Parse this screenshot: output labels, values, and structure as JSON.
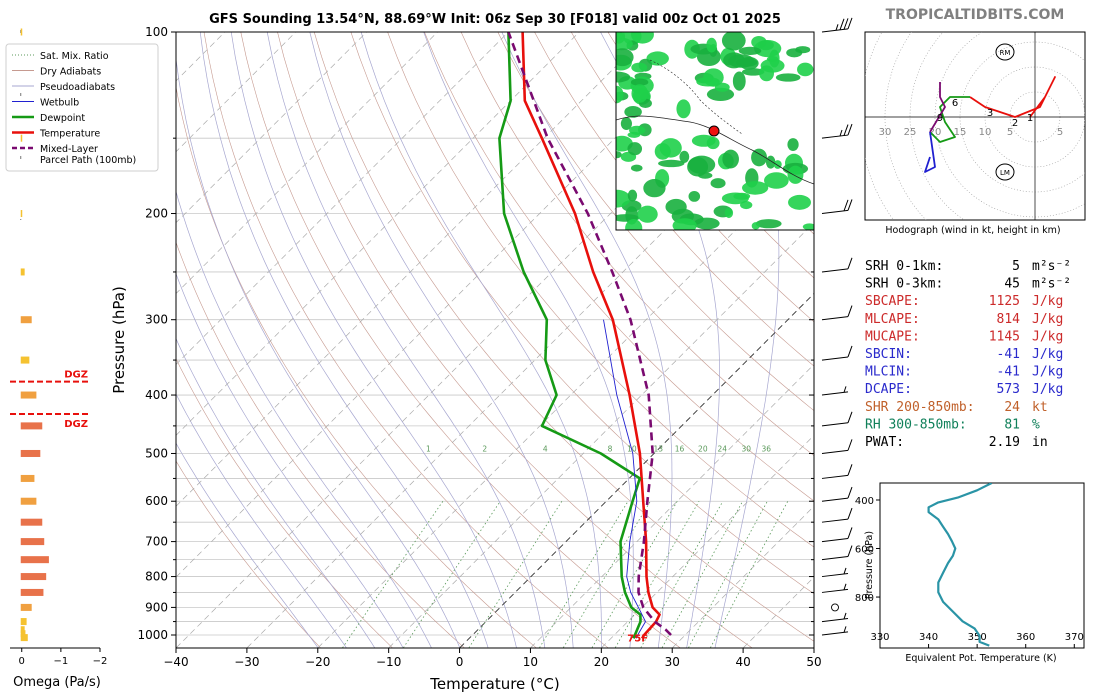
{
  "header": {
    "title": "GFS Sounding 13.54°N, 88.69°W Init: 06z Sep 30 [F018] valid 00z Oct 01 2025",
    "brand": "TROPICALTIDBITS.COM"
  },
  "colors": {
    "temperature": "#e8100c",
    "dewpoint": "#159a15",
    "wetbulb": "#2020d0",
    "parcel": "#7a0a70",
    "dry_adiabat": "#c69a90",
    "moist_adiabat": "#a7a7d0",
    "mixing_ratio": "#5b9a5b",
    "isobar": "#c8c8c8",
    "omega_low": "#f5c230",
    "omega_high": "#e8724a",
    "dgz": "#e8100c",
    "theta_e": "#2a94a6",
    "cape_red": "#cc2a2a",
    "cin_blue": "#2a2acc",
    "shr_orange": "#c0602a",
    "rh_green": "#10805a"
  },
  "chart_data": [
    {
      "type": "line",
      "name": "skew-t",
      "title": "GFS Sounding 13.54°N, 88.69°W Init: 06z Sep 30 [F018] valid 00z Oct 01 2025",
      "xlabel": "Temperature (°C)",
      "ylabel": "Pressure (hPa)",
      "xlim": [
        -40,
        50
      ],
      "ylim": [
        1050,
        100
      ],
      "x_ticks": [
        -40,
        -30,
        -20,
        -10,
        0,
        10,
        20,
        30,
        40,
        50
      ],
      "y_ticks": [
        100,
        200,
        300,
        400,
        500,
        600,
        700,
        800,
        900,
        1000
      ],
      "y_minor": [
        150,
        250,
        350,
        450,
        550,
        650,
        750,
        850,
        950
      ],
      "mixing_ratio_labels": [
        "1",
        "2",
        "4",
        "8",
        "10",
        "13",
        "16",
        "20",
        "24",
        "30",
        "36"
      ],
      "surface_temp_label": "75F",
      "legend": [
        {
          "label": "Sat. Mix. Ratio",
          "key": "mixing_ratio",
          "style": "dot"
        },
        {
          "label": "Dry Adiabats",
          "key": "dry_adiabat",
          "style": "thin"
        },
        {
          "label": "Pseudoadiabats",
          "key": "moist_adiabat",
          "style": "thin"
        },
        {
          "label": "Wetbulb",
          "key": "wetbulb",
          "style": "thin"
        },
        {
          "label": "Dewpoint",
          "key": "dewpoint",
          "style": "thick"
        },
        {
          "label": "Temperature",
          "key": "temperature",
          "style": "thick"
        },
        {
          "label": "Mixed-Layer",
          "label2": "Parcel Path (100mb)",
          "key": "parcel",
          "style": "dash"
        }
      ],
      "series": [
        {
          "name": "Temperature",
          "key": "temperature",
          "points": [
            [
              1013,
              24.4
            ],
            [
              1000,
              24.2
            ],
            [
              950,
              24.0
            ],
            [
              925,
              23.5
            ],
            [
              900,
              21.5
            ],
            [
              850,
              18.8
            ],
            [
              800,
              16.3
            ],
            [
              700,
              11.3
            ],
            [
              600,
              5.2
            ],
            [
              500,
              -2.0
            ],
            [
              400,
              -11.7
            ],
            [
              300,
              -24.7
            ],
            [
              250,
              -34.2
            ],
            [
              200,
              -45.0
            ],
            [
              150,
              -60.3
            ],
            [
              130,
              -68
            ],
            [
              100,
              -78
            ]
          ]
        },
        {
          "name": "Dewpoint",
          "key": "dewpoint",
          "points": [
            [
              1013,
              23.2
            ],
            [
              1000,
              22.9
            ],
            [
              950,
              21.8
            ],
            [
              925,
              20.8
            ],
            [
              900,
              18.5
            ],
            [
              850,
              15.5
            ],
            [
              800,
              12.8
            ],
            [
              700,
              7.7
            ],
            [
              600,
              3.7
            ],
            [
              550,
              1.5
            ],
            [
              500,
              -7.5
            ],
            [
              450,
              -19.7
            ],
            [
              400,
              -22.0
            ],
            [
              350,
              -28.5
            ],
            [
              300,
              -34.0
            ],
            [
              250,
              -44.0
            ],
            [
              200,
              -55.0
            ],
            [
              150,
              -66.3
            ],
            [
              130,
              -70
            ],
            [
              100,
              -80
            ]
          ]
        },
        {
          "name": "Wetbulb",
          "key": "wetbulb",
          "points": [
            [
              1013,
              23.6
            ],
            [
              1000,
              23.3
            ],
            [
              950,
              22.5
            ],
            [
              900,
              19.5
            ],
            [
              850,
              16.3
            ],
            [
              800,
              13.5
            ],
            [
              700,
              9.0
            ],
            [
              600,
              4.3
            ],
            [
              500,
              -3.0
            ],
            [
              400,
              -13.5
            ],
            [
              300,
              -26.0
            ]
          ]
        },
        {
          "name": "Parcel Path (100mb)",
          "key": "parcel",
          "points": [
            [
              1000,
              28.0
            ],
            [
              980,
              26.5
            ],
            [
              950,
              23.8
            ],
            [
              900,
              20.2
            ],
            [
              850,
              17.4
            ],
            [
              800,
              15.2
            ],
            [
              700,
              11.0
            ],
            [
              600,
              5.8
            ],
            [
              500,
              -0.2
            ],
            [
              400,
              -9.0
            ],
            [
              300,
              -22.2
            ],
            [
              250,
              -31.5
            ],
            [
              200,
              -43.2
            ],
            [
              150,
              -59.5
            ],
            [
              100,
              -80
            ]
          ]
        }
      ]
    },
    {
      "type": "bar",
      "name": "omega-profile",
      "xlabel": "Omega (Pa/s)",
      "xlim": [
        0.3,
        -2
      ],
      "x_ticks": [
        "0",
        "−1",
        "−2"
      ],
      "dgz_label": "DGZ",
      "dgz_levels": [
        380,
        430
      ],
      "pressure": [
        1010,
        995,
        980,
        950,
        900,
        850,
        800,
        750,
        700,
        650,
        600,
        550,
        500,
        450,
        400,
        350,
        300,
        250,
        200,
        150,
        100
      ],
      "values": [
        -0.18,
        -0.12,
        -0.1,
        -0.15,
        -0.28,
        -0.58,
        -0.65,
        -0.72,
        -0.6,
        -0.55,
        -0.4,
        -0.35,
        -0.5,
        -0.55,
        -0.4,
        -0.22,
        -0.28,
        -0.1,
        -0.02,
        -0.02,
        -0.02
      ]
    },
    {
      "type": "line",
      "name": "hodograph",
      "xlabel": "Hodograph (wind in kt, height in km)",
      "ring_labels": [
        "30",
        "25",
        "20",
        "15",
        "10",
        "5",
        "5"
      ],
      "storm_motion_labels": [
        "RM",
        "LM"
      ],
      "height_labels": [
        "1",
        "2",
        "3",
        "6",
        "9"
      ],
      "segments": [
        {
          "key": "temperature",
          "points": [
            [
              -1,
              0
            ],
            [
              2,
              4
            ],
            [
              4,
              8
            ],
            [
              3,
              6
            ],
            [
              1,
              2
            ],
            [
              -4,
              0
            ],
            [
              -7,
              1
            ],
            [
              -10,
              2
            ],
            [
              -13,
              4
            ]
          ]
        },
        {
          "key": "dewpoint",
          "points": [
            [
              -13,
              4
            ],
            [
              -17,
              4
            ],
            [
              -19,
              2
            ],
            [
              -18,
              -1
            ],
            [
              -16,
              -4
            ],
            [
              -19,
              -5
            ],
            [
              -21,
              -3
            ]
          ]
        },
        {
          "key": "wetbulb",
          "points": [
            [
              -21,
              -3
            ],
            [
              -20,
              -10
            ],
            [
              -22,
              -11
            ],
            [
              -21,
              -8
            ]
          ]
        },
        {
          "key": "parcel",
          "points": [
            [
              -21,
              -3
            ],
            [
              -18,
              2
            ],
            [
              -19,
              4
            ],
            [
              -19,
              7
            ]
          ]
        }
      ]
    },
    {
      "type": "line",
      "name": "theta-e-profile",
      "xlabel": "Equivalent Pot. Temperature (K)",
      "ylabel": "Pressure (hPa)",
      "xlim": [
        330,
        372
      ],
      "ylim": [
        1010,
        330
      ],
      "x_ticks": [
        330,
        340,
        350,
        360,
        370
      ],
      "y_ticks": [
        400,
        600,
        800
      ],
      "points": [
        [
          1000,
          352.5
        ],
        [
          985,
          350.5
        ],
        [
          960,
          350.5
        ],
        [
          930,
          349.5
        ],
        [
          900,
          347.0
        ],
        [
          860,
          345.0
        ],
        [
          820,
          343.0
        ],
        [
          780,
          342.0
        ],
        [
          740,
          342.0
        ],
        [
          700,
          343.0
        ],
        [
          660,
          344.0
        ],
        [
          630,
          345.0
        ],
        [
          600,
          345.5
        ],
        [
          570,
          344.8
        ],
        [
          540,
          344.0
        ],
        [
          510,
          343.0
        ],
        [
          480,
          342.0
        ],
        [
          450,
          340.0
        ],
        [
          430,
          340.0
        ],
        [
          410,
          342.0
        ],
        [
          390,
          346.0
        ],
        [
          360,
          350.0
        ],
        [
          330,
          353.0
        ]
      ]
    }
  ],
  "indices": [
    {
      "label": "SRH 0-1km:",
      "value": "5",
      "unit": "m²s⁻²",
      "color": "#000000"
    },
    {
      "label": "SRH 0-3km:",
      "value": "45",
      "unit": "m²s⁻²",
      "color": "#000000"
    },
    {
      "label": "SBCAPE:",
      "value": "1125",
      "unit": "J/kg",
      "color": "#cc2a2a"
    },
    {
      "label": "MLCAPE:",
      "value": "814",
      "unit": "J/kg",
      "color": "#cc2a2a"
    },
    {
      "label": "MUCAPE:",
      "value": "1145",
      "unit": "J/kg",
      "color": "#cc2a2a"
    },
    {
      "label": "SBCIN:",
      "value": "-41",
      "unit": "J/kg",
      "color": "#2a2acc"
    },
    {
      "label": "MLCIN:",
      "value": "-41",
      "unit": "J/kg",
      "color": "#2a2acc"
    },
    {
      "label": "DCAPE:",
      "value": "573",
      "unit": "J/kg",
      "color": "#2a2acc"
    },
    {
      "label": "SHR 200-850mb:",
      "value": "24",
      "unit": "kt",
      "color": "#c0602a"
    },
    {
      "label": "RH 300-850mb:",
      "value": "81",
      "unit": "%",
      "color": "#10805a"
    },
    {
      "label": "PWAT:",
      "value": "2.19",
      "unit": "in",
      "color": "#000000"
    }
  ],
  "wind_barbs": [
    {
      "p": 100,
      "kt": 35
    },
    {
      "p": 150,
      "kt": 25
    },
    {
      "p": 200,
      "kt": 20
    },
    {
      "p": 250,
      "kt": 10
    },
    {
      "p": 300,
      "kt": 10
    },
    {
      "p": 350,
      "kt": 10
    },
    {
      "p": 400,
      "kt": 5
    },
    {
      "p": 450,
      "kt": 10
    },
    {
      "p": 500,
      "kt": 10
    },
    {
      "p": 550,
      "kt": 10
    },
    {
      "p": 600,
      "kt": 10
    },
    {
      "p": 650,
      "kt": 10
    },
    {
      "p": 700,
      "kt": 10
    },
    {
      "p": 750,
      "kt": 10
    },
    {
      "p": 800,
      "kt": 5
    },
    {
      "p": 850,
      "kt": 5
    },
    {
      "p": 900,
      "kt": 0
    },
    {
      "p": 950,
      "kt": 5
    },
    {
      "p": 1000,
      "kt": 5
    }
  ],
  "map": {
    "name": "location-map"
  }
}
